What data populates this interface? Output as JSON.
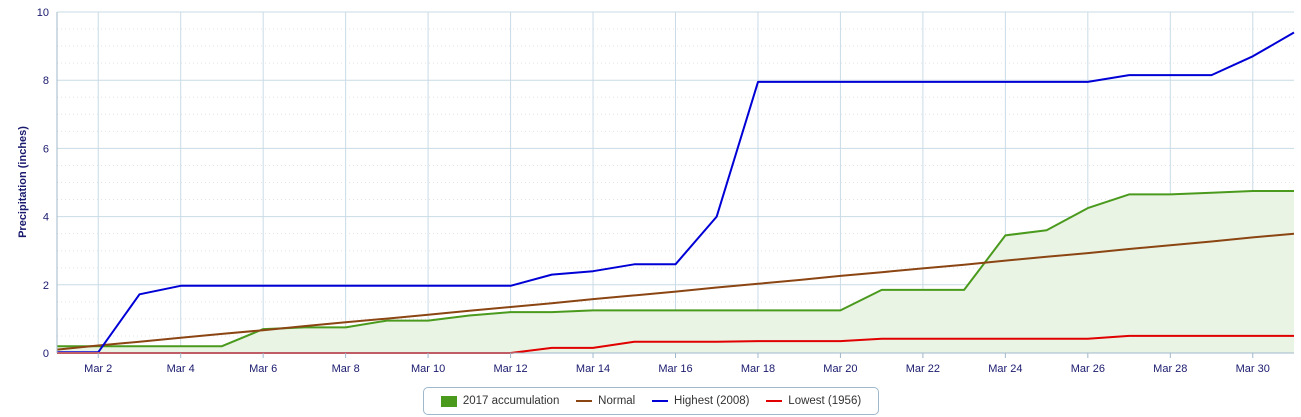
{
  "chart_data": {
    "type": "line",
    "title": "",
    "xlabel": "",
    "ylabel": "Precipitation (inches)",
    "x": [
      "Mar 1",
      "Mar 2",
      "Mar 3",
      "Mar 4",
      "Mar 5",
      "Mar 6",
      "Mar 7",
      "Mar 8",
      "Mar 9",
      "Mar 10",
      "Mar 11",
      "Mar 12",
      "Mar 13",
      "Mar 14",
      "Mar 15",
      "Mar 16",
      "Mar 17",
      "Mar 18",
      "Mar 19",
      "Mar 20",
      "Mar 21",
      "Mar 22",
      "Mar 23",
      "Mar 24",
      "Mar 25",
      "Mar 26",
      "Mar 27",
      "Mar 28",
      "Mar 29",
      "Mar 30",
      "Mar 31"
    ],
    "x_tick_labels": [
      "Mar 2",
      "Mar 4",
      "Mar 6",
      "Mar 8",
      "Mar 10",
      "Mar 12",
      "Mar 14",
      "Mar 16",
      "Mar 18",
      "Mar 20",
      "Mar 22",
      "Mar 24",
      "Mar 26",
      "Mar 28",
      "Mar 30"
    ],
    "y_ticks": [
      0,
      2,
      4,
      6,
      8,
      10
    ],
    "ylim": [
      0,
      10
    ],
    "grid": true,
    "legend_position": "bottom-center",
    "series": [
      {
        "name": "2017 accumulation",
        "kind": "area",
        "color": "#4a9a1e",
        "fill": "#eaf4e4",
        "values": [
          0.2,
          0.2,
          0.2,
          0.2,
          0.2,
          0.7,
          0.75,
          0.75,
          0.95,
          0.95,
          1.1,
          1.2,
          1.2,
          1.25,
          1.25,
          1.25,
          1.25,
          1.25,
          1.25,
          1.25,
          1.85,
          1.85,
          1.85,
          3.45,
          3.6,
          4.25,
          4.65,
          4.65,
          4.7,
          4.75,
          4.75
        ]
      },
      {
        "name": "Normal",
        "kind": "line",
        "color": "#8b4513",
        "values": [
          0.1,
          0.22,
          0.33,
          0.45,
          0.56,
          0.67,
          0.79,
          0.9,
          1.01,
          1.12,
          1.24,
          1.35,
          1.46,
          1.58,
          1.69,
          1.8,
          1.92,
          2.03,
          2.14,
          2.26,
          2.37,
          2.48,
          2.59,
          2.71,
          2.82,
          2.93,
          3.05,
          3.16,
          3.27,
          3.39,
          3.5
        ]
      },
      {
        "name": "Highest (2008)",
        "kind": "line",
        "color": "#0000d6",
        "values": [
          0.02,
          0.02,
          1.72,
          1.97,
          1.97,
          1.97,
          1.97,
          1.97,
          1.97,
          1.97,
          1.97,
          1.97,
          2.3,
          2.4,
          2.6,
          2.6,
          4.0,
          7.95,
          7.95,
          7.95,
          7.95,
          7.95,
          7.95,
          7.95,
          7.95,
          7.95,
          8.15,
          8.15,
          8.15,
          8.7,
          9.4
        ]
      },
      {
        "name": "Lowest (1956)",
        "kind": "line",
        "color": "#e00000",
        "values": [
          0,
          0,
          0,
          0,
          0,
          0,
          0,
          0,
          0,
          0,
          0,
          0,
          0.15,
          0.15,
          0.33,
          0.33,
          0.33,
          0.35,
          0.35,
          0.35,
          0.42,
          0.42,
          0.42,
          0.42,
          0.42,
          0.42,
          0.5,
          0.5,
          0.5,
          0.5,
          0.5
        ]
      }
    ]
  }
}
